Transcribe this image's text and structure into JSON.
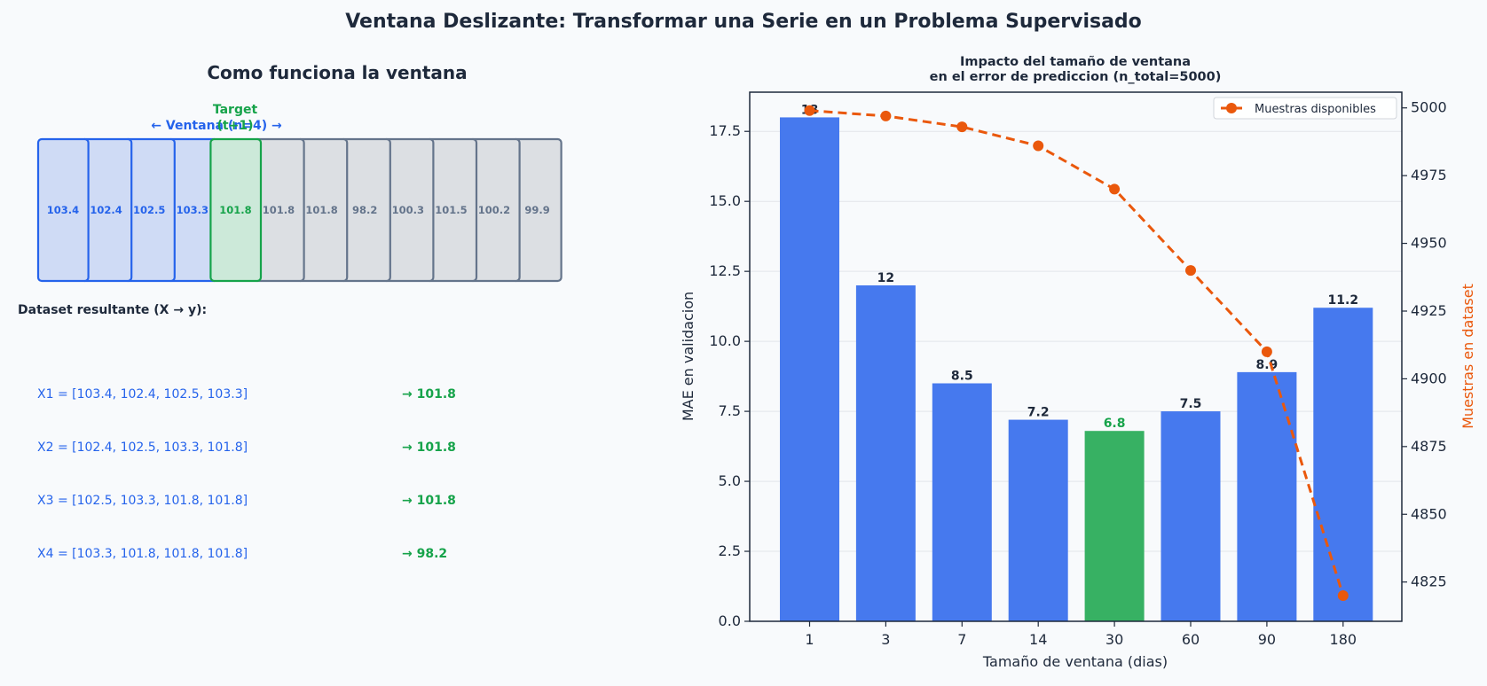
{
  "figure": {
    "suptitle": "Ventana Deslizante: Transformar una Serie en un Problema Supervisado"
  },
  "left_panel": {
    "title": "Como funciona la ventana",
    "window_label": "← Ventana (n=4) →",
    "target_label": "Target",
    "target_sublabel": "(t+1)",
    "series_values": [
      "103.4",
      "102.4",
      "102.5",
      "103.3",
      "101.8",
      "101.8",
      "101.8",
      "98.2",
      "100.3",
      "101.5",
      "100.2",
      "99.9"
    ],
    "window_size": 4,
    "dataset_title": "Dataset resultante (X → y):",
    "dataset_rows": [
      {
        "x": "X1 = [103.4, 102.4, 102.5, 103.3]",
        "y": "→  101.8"
      },
      {
        "x": "X2 = [102.4, 102.5, 103.3, 101.8]",
        "y": "→  101.8"
      },
      {
        "x": "X3 = [102.5, 103.3, 101.8, 101.8]",
        "y": "→  101.8"
      },
      {
        "x": "X4 = [103.3, 101.8, 101.8, 101.8]",
        "y": "→  98.2"
      }
    ],
    "colors": {
      "window": "#2563eb",
      "target": "#16a34a",
      "rest": "#64748b"
    }
  },
  "chart_data": {
    "type": "bar",
    "title": "Impacto del tamaño de ventana\nen el error de prediccion (n_total=5000)",
    "xlabel": "Tamaño de ventana (dias)",
    "ylabel": "MAE en validacion",
    "y2label": "Muestras en dataset",
    "categories": [
      "1",
      "3",
      "7",
      "14",
      "30",
      "60",
      "90",
      "180"
    ],
    "values": [
      18,
      12,
      8.5,
      7.2,
      6.8,
      7.5,
      8.9,
      11.2
    ],
    "value_labels": [
      "18",
      "12",
      "8.5",
      "7.2",
      "6.8",
      "7.5",
      "8.9",
      "11.2"
    ],
    "highlight_index": 4,
    "ylim": [
      0,
      18.9
    ],
    "yticks": [
      "0.0",
      "2.5",
      "5.0",
      "7.5",
      "10.0",
      "12.5",
      "15.0",
      "17.5"
    ],
    "line_series": {
      "name": "Muestras disponibles",
      "values": [
        4999,
        4997,
        4993,
        4986,
        4970,
        4940,
        4910,
        4820
      ],
      "ylim": [
        4810.5,
        5005.8
      ],
      "yticks": [
        "4825",
        "4850",
        "4875",
        "4900",
        "4925",
        "4950",
        "4975",
        "5000"
      ]
    },
    "legend_placement": "upper-right",
    "grid": "y",
    "colors": {
      "bar": "#4679ee",
      "highlight": "#37b163",
      "line": "#ea580c"
    }
  }
}
